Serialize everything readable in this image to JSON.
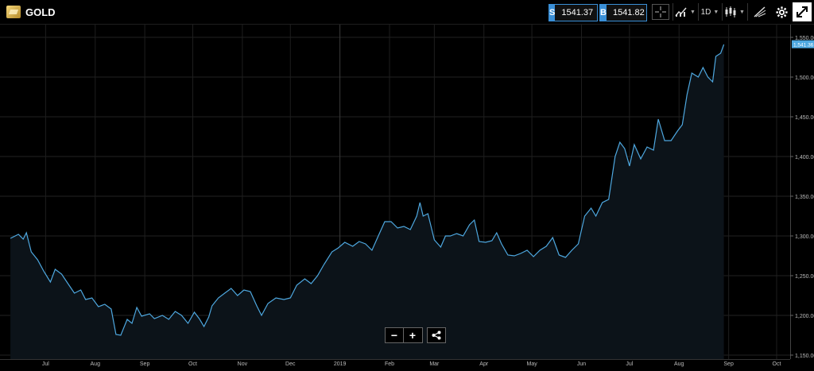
{
  "header": {
    "symbol": "GOLD",
    "sell_tag": "S",
    "sell_price": "1541.37",
    "buy_tag": "B",
    "buy_price": "1541.82",
    "timeframe": "1D",
    "icons": [
      "gold-logo-icon",
      "crosshair-icon",
      "chart-type-icon",
      "candlestick-icon",
      "drawing-tools-icon",
      "settings-gear-icon",
      "fullscreen-icon"
    ]
  },
  "chart_data": {
    "type": "area",
    "title": "",
    "xlabel": "",
    "ylabel": "",
    "ylim": [
      1145,
      1566
    ],
    "y_ticks": [
      "1,550.00",
      "1,500.00",
      "1,450.00",
      "1,400.00",
      "1,350.00",
      "1,300.00",
      "1,250.00",
      "1,200.00",
      "1,150.00"
    ],
    "y_tick_values": [
      1550,
      1500,
      1450,
      1400,
      1350,
      1300,
      1250,
      1200,
      1150
    ],
    "x_ticks": [
      "Jul",
      "Aug",
      "Sep",
      "Oct",
      "Nov",
      "Dec",
      "2019",
      "Feb",
      "Mar",
      "Apr",
      "May",
      "Jun",
      "Jul",
      "Aug",
      "Sep",
      "Oct"
    ],
    "x_tick_dates": [
      "2018-07-01",
      "2018-08-01",
      "2018-09-01",
      "2018-10-01",
      "2018-11-01",
      "2018-12-01",
      "2019-01-01",
      "2019-02-01",
      "2019-03-01",
      "2019-04-01",
      "2019-05-01",
      "2019-06-01",
      "2019-07-01",
      "2019-08-01",
      "2019-09-01",
      "2019-10-01"
    ],
    "current_price_label": "1,541.36",
    "current_price": 1541.36,
    "series": [
      {
        "name": "",
        "color": "#4ea8e0",
        "points": [
          [
            "2018-06-09",
            1297
          ],
          [
            "2018-06-14",
            1302
          ],
          [
            "2018-06-17",
            1296
          ],
          [
            "2018-06-19",
            1304
          ],
          [
            "2018-06-22",
            1280
          ],
          [
            "2018-06-26",
            1270
          ],
          [
            "2018-06-30",
            1255
          ],
          [
            "2018-07-04",
            1242
          ],
          [
            "2018-07-07",
            1258
          ],
          [
            "2018-07-11",
            1252
          ],
          [
            "2018-07-15",
            1240
          ],
          [
            "2018-07-19",
            1228
          ],
          [
            "2018-07-23",
            1232
          ],
          [
            "2018-07-26",
            1220
          ],
          [
            "2018-07-30",
            1222
          ],
          [
            "2018-08-03",
            1211
          ],
          [
            "2018-08-07",
            1214
          ],
          [
            "2018-08-11",
            1208
          ],
          [
            "2018-08-14",
            1176
          ],
          [
            "2018-08-17",
            1175
          ],
          [
            "2018-08-21",
            1195
          ],
          [
            "2018-08-24",
            1190
          ],
          [
            "2018-08-27",
            1210
          ],
          [
            "2018-08-30",
            1199
          ],
          [
            "2018-09-04",
            1202
          ],
          [
            "2018-09-07",
            1196
          ],
          [
            "2018-09-12",
            1200
          ],
          [
            "2018-09-16",
            1195
          ],
          [
            "2018-09-20",
            1205
          ],
          [
            "2018-09-24",
            1200
          ],
          [
            "2018-09-28",
            1190
          ],
          [
            "2018-10-02",
            1204
          ],
          [
            "2018-10-05",
            1196
          ],
          [
            "2018-10-08",
            1186
          ],
          [
            "2018-10-11",
            1198
          ],
          [
            "2018-10-13",
            1212
          ],
          [
            "2018-10-17",
            1222
          ],
          [
            "2018-10-21",
            1228
          ],
          [
            "2018-10-25",
            1234
          ],
          [
            "2018-10-29",
            1225
          ],
          [
            "2018-11-02",
            1232
          ],
          [
            "2018-11-06",
            1230
          ],
          [
            "2018-11-10",
            1212
          ],
          [
            "2018-11-13",
            1200
          ],
          [
            "2018-11-17",
            1215
          ],
          [
            "2018-11-22",
            1222
          ],
          [
            "2018-11-27",
            1220
          ],
          [
            "2018-12-01",
            1222
          ],
          [
            "2018-12-05",
            1238
          ],
          [
            "2018-12-10",
            1246
          ],
          [
            "2018-12-14",
            1240
          ],
          [
            "2018-12-18",
            1250
          ],
          [
            "2018-12-22",
            1264
          ],
          [
            "2018-12-27",
            1280
          ],
          [
            "2018-12-31",
            1285
          ],
          [
            "2019-01-04",
            1292
          ],
          [
            "2019-01-09",
            1287
          ],
          [
            "2019-01-13",
            1293
          ],
          [
            "2019-01-17",
            1290
          ],
          [
            "2019-01-21",
            1282
          ],
          [
            "2019-01-25",
            1300
          ],
          [
            "2019-01-29",
            1318
          ],
          [
            "2019-02-02",
            1318
          ],
          [
            "2019-02-06",
            1310
          ],
          [
            "2019-02-10",
            1312
          ],
          [
            "2019-02-14",
            1308
          ],
          [
            "2019-02-18",
            1325
          ],
          [
            "2019-02-20",
            1342
          ],
          [
            "2019-02-22",
            1325
          ],
          [
            "2019-02-25",
            1328
          ],
          [
            "2019-03-01",
            1295
          ],
          [
            "2019-03-05",
            1286
          ],
          [
            "2019-03-08",
            1300
          ],
          [
            "2019-03-11",
            1300
          ],
          [
            "2019-03-15",
            1303
          ],
          [
            "2019-03-19",
            1300
          ],
          [
            "2019-03-23",
            1314
          ],
          [
            "2019-03-26",
            1320
          ],
          [
            "2019-03-29",
            1293
          ],
          [
            "2019-04-02",
            1292
          ],
          [
            "2019-04-06",
            1294
          ],
          [
            "2019-04-09",
            1304
          ],
          [
            "2019-04-12",
            1290
          ],
          [
            "2019-04-16",
            1276
          ],
          [
            "2019-04-20",
            1275
          ],
          [
            "2019-04-24",
            1278
          ],
          [
            "2019-04-28",
            1282
          ],
          [
            "2019-05-02",
            1274
          ],
          [
            "2019-05-06",
            1282
          ],
          [
            "2019-05-10",
            1287
          ],
          [
            "2019-05-14",
            1298
          ],
          [
            "2019-05-18",
            1276
          ],
          [
            "2019-05-22",
            1273
          ],
          [
            "2019-05-26",
            1282
          ],
          [
            "2019-05-30",
            1290
          ],
          [
            "2019-06-03",
            1325
          ],
          [
            "2019-06-07",
            1335
          ],
          [
            "2019-06-10",
            1325
          ],
          [
            "2019-06-14",
            1342
          ],
          [
            "2019-06-18",
            1346
          ],
          [
            "2019-06-22",
            1400
          ],
          [
            "2019-06-25",
            1418
          ],
          [
            "2019-06-28",
            1410
          ],
          [
            "2019-07-01",
            1388
          ],
          [
            "2019-07-04",
            1415
          ],
          [
            "2019-07-08",
            1397
          ],
          [
            "2019-07-12",
            1412
          ],
          [
            "2019-07-16",
            1408
          ],
          [
            "2019-07-19",
            1447
          ],
          [
            "2019-07-23",
            1420
          ],
          [
            "2019-07-27",
            1420
          ],
          [
            "2019-07-31",
            1432
          ],
          [
            "2019-08-03",
            1440
          ],
          [
            "2019-08-06",
            1478
          ],
          [
            "2019-08-09",
            1505
          ],
          [
            "2019-08-13",
            1500
          ],
          [
            "2019-08-16",
            1512
          ],
          [
            "2019-08-19",
            1500
          ],
          [
            "2019-08-22",
            1494
          ],
          [
            "2019-08-24",
            1526
          ],
          [
            "2019-08-27",
            1530
          ],
          [
            "2019-08-29",
            1541
          ]
        ]
      }
    ],
    "grid": true,
    "legend": "none"
  },
  "controls": {
    "zoom_out_label": "−",
    "zoom_in_label": "+",
    "share_icon": "share-icon"
  }
}
